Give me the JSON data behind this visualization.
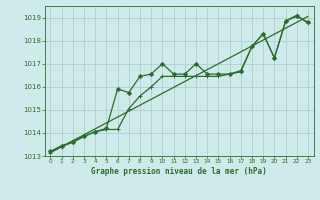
{
  "title": "Graphe pression niveau de la mer (hPa)",
  "bg_color": "#ceeaea",
  "grid_color": "#b0d0d0",
  "line_color": "#2d6b2d",
  "xlim": [
    -0.5,
    23.5
  ],
  "ylim": [
    1013,
    1019.5
  ],
  "yticks": [
    1013,
    1014,
    1015,
    1016,
    1017,
    1018,
    1019
  ],
  "xticks": [
    0,
    1,
    2,
    3,
    4,
    5,
    6,
    7,
    8,
    9,
    10,
    11,
    12,
    13,
    14,
    15,
    16,
    17,
    18,
    19,
    20,
    21,
    22,
    23
  ],
  "series1_x": [
    0,
    1,
    2,
    3,
    4,
    5,
    6,
    7,
    8,
    9,
    10,
    11,
    12,
    13,
    14,
    15,
    16,
    17,
    18,
    19,
    20,
    21,
    22,
    23
  ],
  "series1_y": [
    1013.2,
    1013.45,
    1013.6,
    1013.85,
    1014.05,
    1014.2,
    1015.9,
    1015.75,
    1016.45,
    1016.55,
    1017.0,
    1016.55,
    1016.55,
    1017.0,
    1016.55,
    1016.55,
    1016.55,
    1016.7,
    1017.75,
    1018.3,
    1017.25,
    1018.85,
    1019.05,
    1018.8
  ],
  "series2_x": [
    0,
    1,
    2,
    3,
    4,
    5,
    6,
    7,
    8,
    9,
    10,
    11,
    12,
    13,
    14,
    15,
    16,
    17,
    18,
    19,
    20,
    21,
    22,
    23
  ],
  "series2_y": [
    1013.15,
    1013.4,
    1013.6,
    1013.85,
    1014.05,
    1014.15,
    1014.15,
    1015.05,
    1015.6,
    1016.0,
    1016.45,
    1016.45,
    1016.45,
    1016.45,
    1016.45,
    1016.45,
    1016.55,
    1016.65,
    1017.75,
    1018.3,
    1017.25,
    1018.85,
    1019.1,
    1018.75
  ],
  "series3_x": [
    0,
    23
  ],
  "series3_y": [
    1013.15,
    1019.05
  ]
}
